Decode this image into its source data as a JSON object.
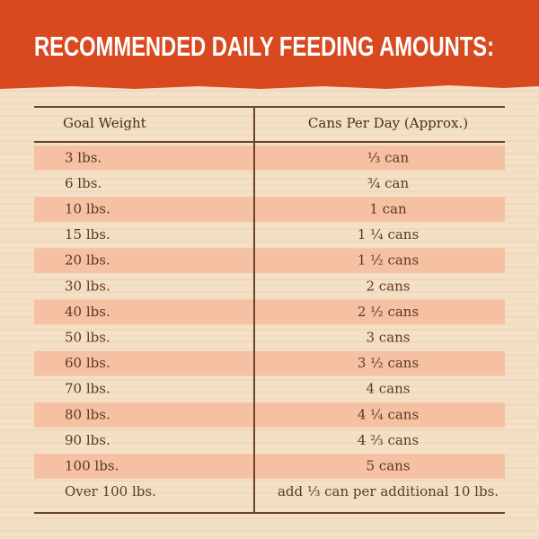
{
  "header": {
    "title": "RECOMMENDED DAILY FEEDING AMOUNTS:"
  },
  "table": {
    "columns": [
      "Goal Weight",
      "Cans Per Day (Approx.)"
    ],
    "rows": [
      [
        "3 lbs.",
        "⅓ can"
      ],
      [
        "6 lbs.",
        "¾ can"
      ],
      [
        "10 lbs.",
        "1 can"
      ],
      [
        "15 lbs.",
        "1 ¼ cans"
      ],
      [
        "20 lbs.",
        "1 ½ cans"
      ],
      [
        "30 lbs.",
        "2 cans"
      ],
      [
        "40 lbs.",
        "2 ½ cans"
      ],
      [
        "50 lbs.",
        "3 cans"
      ],
      [
        "60 lbs.",
        "3 ½ cans"
      ],
      [
        "70 lbs.",
        "4 cans"
      ],
      [
        "80 lbs.",
        "4 ¼ cans"
      ],
      [
        "90 lbs.",
        "4 ⅔ cans"
      ],
      [
        "100 lbs.",
        "5 cans"
      ],
      [
        "Over 100 lbs.",
        "add ⅓ can per additional 10 lbs."
      ]
    ]
  }
}
